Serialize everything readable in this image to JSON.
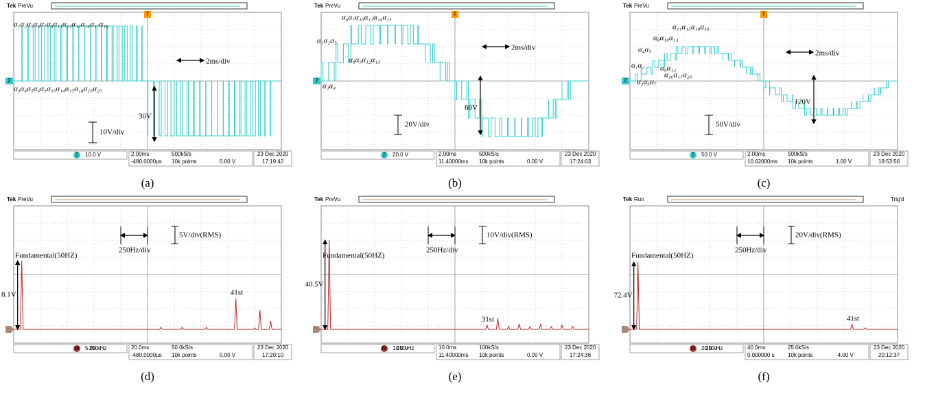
{
  "panels": [
    {
      "caption": "(a)",
      "brand": "Tek",
      "mode": "PreVu",
      "trigger_marker": "T",
      "channel": "2",
      "scale": "10.0 V",
      "timebase": "2.00ms",
      "sample_rate": "500kS/s",
      "points": "10k points",
      "trigger_level": "0.00 V",
      "trigger_position": "-480.0000µs",
      "date": "23 Dec  2020",
      "clock": "17:19:42",
      "time_div": "2ms/div",
      "volt_div": "10V/div",
      "amplitude": "30V",
      "alpha_labels": [
        "α₁α₂α₅α₆α₇α₈α₁₁α₁₂α₁₃α₁₆α₁₇α₁₈",
        "α₃α₄α₅α₆α₉α₁₀α₁₄α₁₅α₁₈α₁₉α₂₀"
      ]
    },
    {
      "caption": "(b)",
      "brand": "Tek",
      "mode": "PreVu",
      "trigger_marker": "T",
      "channel": "2",
      "scale": "20.0 V",
      "timebase": "2.00ms",
      "sample_rate": "500kS/s",
      "points": "10k points",
      "trigger_level": "0.00 V",
      "trigger_position": "11.40000ms",
      "date": "23 Dec  2020",
      "clock": "17:24:03",
      "time_div": "2ms/div",
      "volt_div": "20V/div",
      "amplitude": "60V",
      "alpha_labels": [
        "α₆α₇α₁₀α₁₁α₁₄α₁₅",
        "α₁α₂α₅",
        "α₈α₉α₁₂α₁₃",
        "α₃α₄"
      ]
    },
    {
      "caption": "(c)",
      "brand": "Tek",
      "mode": "PreVu",
      "trigger_marker": "T",
      "channel": "2",
      "scale": "50.0 V",
      "timebase": "2.00ms",
      "sample_rate": "500kS/s",
      "points": "10k points",
      "trigger_level": "1.00 V",
      "trigger_position": "10.62000ms",
      "date": "23 Dec  2020",
      "clock": "19:53:56",
      "time_div": "2ms/div",
      "volt_div": "50V/div",
      "amplitude": "120V",
      "alpha_labels": [
        "α₁₁α₁₅α₁₈α₁₉",
        "α₈α₁₀α₁₃",
        "α₄α₅",
        "α₁α₂",
        "α₉α₁₂",
        "α₁₆α₁₇α₂₀",
        "α₃α₆α₇"
      ]
    },
    {
      "caption": "(d)",
      "brand": "Tek",
      "mode": "PreVu",
      "channel": "M",
      "scale": "5.00 V",
      "span": "250 Hz",
      "timebase": "20.0ms",
      "sample_rate": "50.0kS/s",
      "points": "10k points",
      "trigger_level": "0.00 V",
      "trigger_position": "-480.0000µs",
      "date": "23 Dec  2020",
      "clock": "17:20:10",
      "freq_div": "250Hz/div",
      "volt_div": "5V/div(RMS)",
      "fundamental": "Fundamental(50HZ)",
      "amplitude": "8.1V",
      "harmonic": "41st"
    },
    {
      "caption": "(e)",
      "brand": "Tek",
      "mode": "PreVu",
      "channel": "M",
      "scale": "10.0 V",
      "span": "250 Hz",
      "timebase": "10.0ms",
      "sample_rate": "100kS/s",
      "points": "10k points",
      "trigger_level": "0.00 V",
      "trigger_position": "11.40000ms",
      "date": "23 Dec  2020",
      "clock": "17:24:36",
      "freq_div": "250Hz/div",
      "volt_div": "10V/div(RMS)",
      "fundamental": "Fundamental(50HZ)",
      "amplitude": "40.5V",
      "harmonic": "31st"
    },
    {
      "caption": "(f)",
      "brand": "Tek",
      "mode": "Run",
      "trigger_status": "Trig'd",
      "channel": "M",
      "scale": "20.0 V",
      "span": "250 Hz",
      "timebase": "40.0ms",
      "sample_rate": "25.0kS/s",
      "points": "10k points",
      "trigger_level": "-4.00 V",
      "trigger_position": "0.000000 s",
      "date": "23 Dec  2020",
      "clock": "20:12:37",
      "freq_div": "250Hz/div",
      "volt_div": "20V/div(RMS)",
      "fundamental": "Fundamental(50HZ)",
      "amplitude": "72.4V",
      "harmonic": "41st"
    }
  ]
}
